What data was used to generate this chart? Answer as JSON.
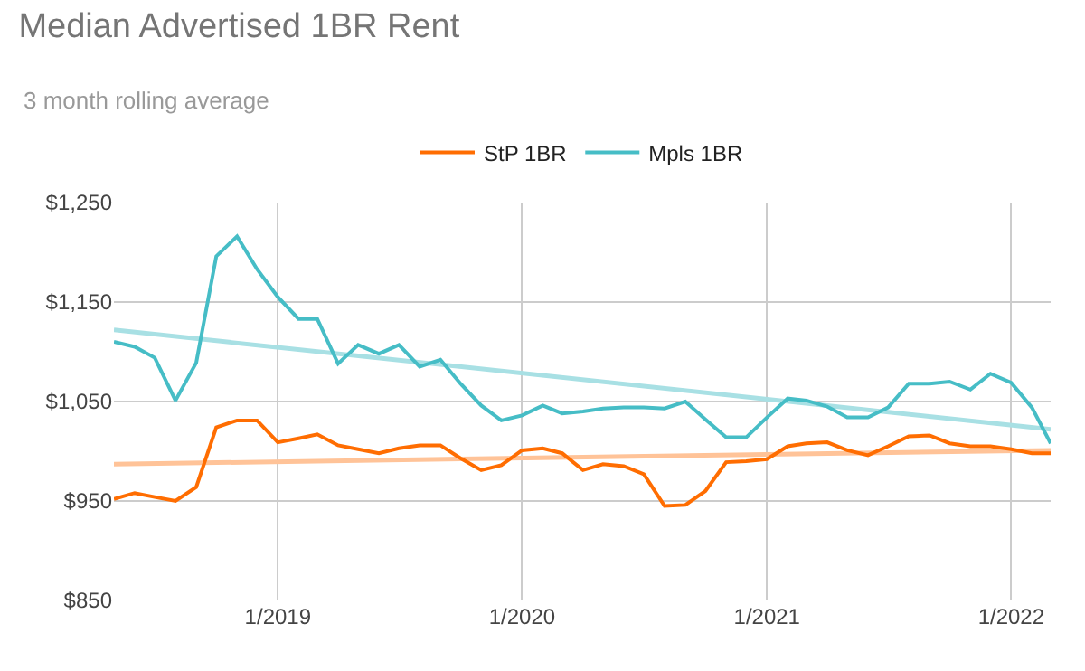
{
  "chart_data": {
    "type": "line",
    "title": "Median Advertised 1BR Rent",
    "subtitle": "3 month rolling average",
    "x": [
      "2018-05",
      "2018-06",
      "2018-07",
      "2018-08",
      "2018-09",
      "2018-10",
      "2018-11",
      "2018-12",
      "2019-01",
      "2019-02",
      "2019-03",
      "2019-04",
      "2019-05",
      "2019-06",
      "2019-07",
      "2019-08",
      "2019-09",
      "2019-10",
      "2019-11",
      "2019-12",
      "2020-01",
      "2020-02",
      "2020-03",
      "2020-04",
      "2020-05",
      "2020-06",
      "2020-07",
      "2020-08",
      "2020-09",
      "2020-10",
      "2020-11",
      "2020-12",
      "2021-01",
      "2021-02",
      "2021-03",
      "2021-04",
      "2021-05",
      "2021-06",
      "2021-07",
      "2021-08",
      "2021-09",
      "2021-10",
      "2021-11",
      "2021-12",
      "2022-01",
      "2022-02",
      "2022-03"
    ],
    "series": [
      {
        "name": "StP 1BR",
        "color": "#ff6d01",
        "values": [
          952,
          958,
          954,
          950,
          964,
          1024,
          1031,
          1031,
          1009,
          1013,
          1017,
          1006,
          1002,
          998,
          1003,
          1006,
          1006,
          993,
          981,
          986,
          1001,
          1003,
          998,
          981,
          987,
          985,
          977,
          945,
          946,
          960,
          989,
          990,
          992,
          1005,
          1008,
          1009,
          1001,
          996,
          1005,
          1015,
          1016,
          1008,
          1005,
          1005,
          1002,
          998,
          998
        ]
      },
      {
        "name": "Mpls 1BR",
        "color": "#46bdc6",
        "values": [
          1110,
          1105,
          1094,
          1051,
          1089,
          1196,
          1216,
          1183,
          1155,
          1133,
          1133,
          1088,
          1107,
          1098,
          1107,
          1085,
          1092,
          1068,
          1046,
          1031,
          1036,
          1046,
          1038,
          1040,
          1043,
          1044,
          1044,
          1043,
          1050,
          1032,
          1014,
          1014,
          1034,
          1053,
          1051,
          1045,
          1034,
          1034,
          1044,
          1068,
          1068,
          1070,
          1062,
          1078,
          1069,
          1044,
          1008
        ]
      },
      {
        "type": "line",
        "color": "#ffc398",
        "x": [
          "2018-05",
          "2022-03"
        ],
        "values": [
          987,
          1001
        ]
      },
      {
        "type": "line",
        "color": "#a8e0e4",
        "x": [
          "2018-05",
          "2022-03"
        ],
        "values": [
          1122,
          1022
        ]
      }
    ],
    "xlim": [
      "2018-05",
      "2022-03"
    ],
    "xticks": [
      {
        "value": "2019-01",
        "label": "1/2019"
      },
      {
        "value": "2020-01",
        "label": "1/2020"
      },
      {
        "value": "2021-01",
        "label": "1/2021"
      },
      {
        "value": "2022-01",
        "label": "1/2022"
      }
    ],
    "ylim": [
      850,
      1250
    ],
    "yticks": [
      {
        "value": 850,
        "label": "$850"
      },
      {
        "value": 950,
        "label": "$950"
      },
      {
        "value": 1050,
        "label": "$1,050"
      },
      {
        "value": 1150,
        "label": "$1,150"
      },
      {
        "value": 1250,
        "label": "$1,250"
      }
    ],
    "grid": true,
    "legend": "top",
    "line_style": "solid",
    "marker": "none"
  }
}
